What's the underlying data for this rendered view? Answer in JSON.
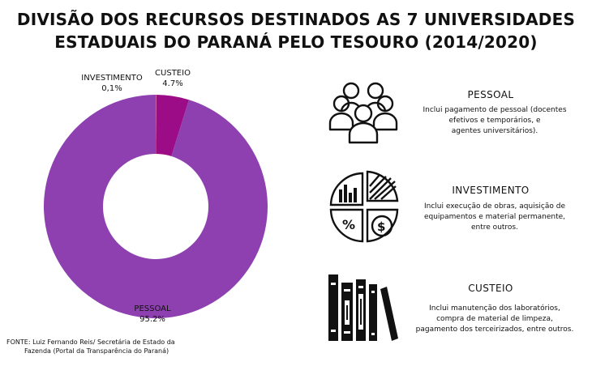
{
  "title_line1": "DIVISÃO DOS RECURSOS DESTINADOS AS 7 UNIVERSIDADES",
  "title_line2": "ESTADUAIS DO PARANÁ PELO TESOURO (2014/2020)",
  "chart_data": {
    "type": "pie",
    "style": "donut",
    "slices": [
      {
        "label": "PESSOAL",
        "value_label": "95.2%",
        "value": 95.2,
        "color": "#8e3fb0"
      },
      {
        "label": "CUSTEIO",
        "value_label": "4.7%",
        "value": 4.7,
        "color": "#9b0c86"
      },
      {
        "label": "INVESTIMENTO",
        "value_label": "0,1%",
        "value": 0.1,
        "color": "#d45fa0"
      }
    ]
  },
  "cards": [
    {
      "title": "PESSOAL",
      "desc": [
        "Inclui  pagamento de pessoal (docentes",
        "efetivos e temporários, e",
        "agentes universitários)."
      ],
      "icon": "people-group-icon"
    },
    {
      "title": "INVESTIMENTO",
      "desc": [
        "Inclui execução de obras, aquisição de",
        "equipamentos e material permanente,",
        "entre outros."
      ],
      "icon": "pie-chart-money-icon"
    },
    {
      "title": "CUSTEIO",
      "desc": [
        "Inclui manutenção dos laboratórios,",
        "compra de material de limpeza,",
        "pagamento dos terceirizados, entre outros."
      ],
      "icon": "books-icon"
    }
  ],
  "source_line1": "FONTE: Luiz Fernando Reis/ Secretária de Estado da",
  "source_line2": "Fazenda (Portal da Transparência do Paraná)"
}
